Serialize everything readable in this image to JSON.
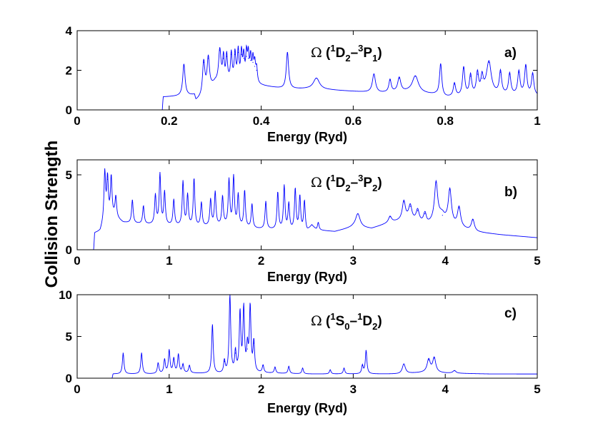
{
  "figure": {
    "ylabel": "Collision Strength",
    "series_color": "#0000ff"
  },
  "chart_data": [
    {
      "type": "line",
      "panel_label": "a)",
      "annotation": {
        "omega": "Ω",
        "open": " (",
        "sup1": "1",
        "t1": "D",
        "sub1": "2",
        "dash": "–",
        "sup2": "3",
        "t2": "P",
        "sub2": "1",
        "close": ")"
      },
      "xlabel": "Energy (Ryd)",
      "xlim": [
        0,
        1
      ],
      "ylim": [
        0,
        4
      ],
      "xticks": [
        0,
        0.2,
        0.4,
        0.6,
        0.8,
        1
      ],
      "xtick_labels": [
        "0",
        "0.2",
        "0.4",
        "0.6",
        "0.8",
        "1"
      ],
      "yticks": [
        0,
        2,
        4
      ],
      "ytick_labels": [
        "0",
        "2",
        "4"
      ],
      "base": [
        [
          0,
          0
        ],
        [
          0.185,
          0
        ],
        [
          0.187,
          0.65
        ],
        [
          0.255,
          0.72
        ],
        [
          0.258,
          0.45
        ],
        [
          0.27,
          0.6
        ],
        [
          0.3,
          1.35
        ],
        [
          0.35,
          1.45
        ],
        [
          0.39,
          1.25
        ],
        [
          0.45,
          1.05
        ],
        [
          0.5,
          1.05
        ],
        [
          0.55,
          1.0
        ],
        [
          0.62,
          0.9
        ],
        [
          0.66,
          0.85
        ],
        [
          0.72,
          0.9
        ],
        [
          0.78,
          0.75
        ],
        [
          0.79,
          0.6
        ],
        [
          0.83,
          0.65
        ],
        [
          0.87,
          0.7
        ],
        [
          0.89,
          0.9
        ],
        [
          0.9,
          0.8
        ],
        [
          0.93,
          0.75
        ],
        [
          1.0,
          0.7
        ]
      ],
      "peaks": [
        [
          0.232,
          2.3,
          0.003
        ],
        [
          0.275,
          2.4,
          0.003
        ],
        [
          0.285,
          2.6,
          0.003
        ],
        [
          0.31,
          3.0,
          0.003
        ],
        [
          0.318,
          2.6,
          0.002
        ],
        [
          0.325,
          2.7,
          0.002
        ],
        [
          0.335,
          2.8,
          0.002
        ],
        [
          0.343,
          2.8,
          0.002
        ],
        [
          0.35,
          2.9,
          0.002
        ],
        [
          0.357,
          2.8,
          0.002
        ],
        [
          0.362,
          2.6,
          0.002
        ],
        [
          0.368,
          2.7,
          0.002
        ],
        [
          0.372,
          2.6,
          0.002
        ],
        [
          0.377,
          2.5,
          0.002
        ],
        [
          0.382,
          2.4,
          0.002
        ],
        [
          0.386,
          2.2,
          0.002
        ],
        [
          0.39,
          2.0,
          0.002
        ],
        [
          0.457,
          2.9,
          0.003
        ],
        [
          0.52,
          1.6,
          0.008
        ],
        [
          0.645,
          1.8,
          0.004
        ],
        [
          0.68,
          1.5,
          0.003
        ],
        [
          0.7,
          1.6,
          0.004
        ],
        [
          0.735,
          1.7,
          0.008
        ],
        [
          0.79,
          2.3,
          0.003
        ],
        [
          0.82,
          1.3,
          0.003
        ],
        [
          0.84,
          2.1,
          0.003
        ],
        [
          0.855,
          1.7,
          0.003
        ],
        [
          0.87,
          1.8,
          0.003
        ],
        [
          0.88,
          1.6,
          0.003
        ],
        [
          0.895,
          2.4,
          0.006
        ],
        [
          0.92,
          1.9,
          0.003
        ],
        [
          0.94,
          1.8,
          0.003
        ],
        [
          0.96,
          1.9,
          0.003
        ],
        [
          0.975,
          2.2,
          0.003
        ],
        [
          0.99,
          1.8,
          0.003
        ]
      ]
    },
    {
      "type": "line",
      "panel_label": "b)",
      "annotation": {
        "omega": "Ω",
        "open": " (",
        "sup1": "1",
        "t1": "D",
        "sub1": "2",
        "dash": "–",
        "sup2": "3",
        "t2": "P",
        "sub2": "2",
        "close": ")"
      },
      "xlabel": "Energy (Ryd)",
      "xlim": [
        0,
        5
      ],
      "ylim": [
        0,
        6
      ],
      "xticks": [
        0,
        1,
        2,
        3,
        4,
        5
      ],
      "xtick_labels": [
        "0",
        "1",
        "2",
        "3",
        "4",
        "5"
      ],
      "yticks": [
        0,
        5
      ],
      "ytick_labels": [
        "0",
        "5"
      ],
      "base": [
        [
          0,
          0
        ],
        [
          0.18,
          0
        ],
        [
          0.19,
          1.1
        ],
        [
          0.25,
          1.2
        ],
        [
          0.3,
          2.0
        ],
        [
          0.4,
          2.2
        ],
        [
          0.5,
          1.8
        ],
        [
          0.7,
          1.7
        ],
        [
          1.0,
          1.6
        ],
        [
          1.3,
          1.5
        ],
        [
          1.6,
          1.6
        ],
        [
          1.9,
          1.4
        ],
        [
          2.2,
          1.3
        ],
        [
          2.5,
          1.2
        ],
        [
          2.55,
          1.6
        ],
        [
          2.6,
          1.3
        ],
        [
          2.8,
          1.2
        ],
        [
          3.0,
          1.5
        ],
        [
          3.2,
          1.4
        ],
        [
          3.4,
          1.8
        ],
        [
          3.6,
          2.0
        ],
        [
          3.8,
          1.6
        ],
        [
          3.95,
          2.2
        ],
        [
          4.1,
          1.6
        ],
        [
          4.3,
          1.2
        ],
        [
          4.6,
          1.0
        ],
        [
          5.0,
          0.8
        ]
      ],
      "peaks": [
        [
          0.3,
          5.1,
          0.01
        ],
        [
          0.33,
          4.7,
          0.01
        ],
        [
          0.37,
          4.8,
          0.01
        ],
        [
          0.42,
          3.5,
          0.01
        ],
        [
          0.6,
          3.3,
          0.01
        ],
        [
          0.72,
          2.9,
          0.01
        ],
        [
          0.85,
          3.6,
          0.01
        ],
        [
          0.9,
          5.0,
          0.01
        ],
        [
          0.95,
          3.8,
          0.01
        ],
        [
          1.05,
          3.3,
          0.01
        ],
        [
          1.15,
          4.5,
          0.01
        ],
        [
          1.2,
          3.6,
          0.01
        ],
        [
          1.27,
          4.7,
          0.01
        ],
        [
          1.35,
          3.1,
          0.01
        ],
        [
          1.45,
          3.3,
          0.01
        ],
        [
          1.5,
          3.8,
          0.01
        ],
        [
          1.58,
          3.5,
          0.01
        ],
        [
          1.65,
          4.6,
          0.01
        ],
        [
          1.7,
          4.8,
          0.01
        ],
        [
          1.75,
          3.6,
          0.01
        ],
        [
          1.82,
          3.9,
          0.01
        ],
        [
          1.9,
          3.0,
          0.01
        ],
        [
          2.05,
          3.2,
          0.01
        ],
        [
          2.18,
          3.8,
          0.01
        ],
        [
          2.25,
          4.2,
          0.01
        ],
        [
          2.3,
          3.0,
          0.01
        ],
        [
          2.37,
          4.0,
          0.01
        ],
        [
          2.42,
          3.5,
          0.01
        ],
        [
          2.47,
          3.2,
          0.01
        ],
        [
          2.62,
          1.8,
          0.01
        ],
        [
          3.05,
          2.4,
          0.03
        ],
        [
          3.4,
          2.2,
          0.02
        ],
        [
          3.55,
          3.2,
          0.02
        ],
        [
          3.62,
          2.9,
          0.02
        ],
        [
          3.7,
          2.6,
          0.02
        ],
        [
          3.78,
          2.4,
          0.02
        ],
        [
          3.9,
          4.5,
          0.02
        ],
        [
          3.97,
          2.3,
          0.02
        ],
        [
          4.05,
          4.0,
          0.02
        ],
        [
          4.15,
          2.8,
          0.02
        ],
        [
          4.3,
          2.0,
          0.02
        ]
      ]
    },
    {
      "type": "line",
      "panel_label": "c)",
      "annotation": {
        "omega": "Ω",
        "open": " (",
        "sup1": "1",
        "t1": "S",
        "sub1": "0",
        "dash": "–",
        "sup2": "1",
        "t2": "D",
        "sub2": "2",
        "close": ")"
      },
      "xlabel": "Energy (Ryd)",
      "xlim": [
        0,
        5
      ],
      "ylim": [
        0,
        10
      ],
      "xticks": [
        0,
        1,
        2,
        3,
        4,
        5
      ],
      "xtick_labels": [
        "0",
        "1",
        "2",
        "3",
        "4",
        "5"
      ],
      "yticks": [
        0,
        5,
        10
      ],
      "ytick_labels": [
        "0",
        "5",
        "10"
      ],
      "base": [
        [
          0,
          0
        ],
        [
          0.38,
          0
        ],
        [
          0.39,
          0.5
        ],
        [
          0.8,
          0.5
        ],
        [
          1.2,
          0.6
        ],
        [
          1.6,
          0.5
        ],
        [
          2.0,
          0.6
        ],
        [
          2.5,
          0.5
        ],
        [
          3.0,
          0.5
        ],
        [
          3.5,
          0.5
        ],
        [
          3.8,
          0.7
        ],
        [
          4.0,
          0.6
        ],
        [
          4.5,
          0.5
        ],
        [
          5.0,
          0.5
        ]
      ],
      "peaks": [
        [
          0.5,
          3.0,
          0.01
        ],
        [
          0.7,
          3.0,
          0.01
        ],
        [
          0.88,
          1.8,
          0.01
        ],
        [
          0.95,
          2.2,
          0.01
        ],
        [
          1.0,
          3.3,
          0.01
        ],
        [
          1.05,
          2.3,
          0.01
        ],
        [
          1.1,
          2.8,
          0.01
        ],
        [
          1.15,
          1.6,
          0.01
        ],
        [
          1.22,
          1.5,
          0.01
        ],
        [
          1.47,
          6.4,
          0.01
        ],
        [
          1.6,
          2.0,
          0.01
        ],
        [
          1.66,
          10.0,
          0.01
        ],
        [
          1.72,
          3.0,
          0.01
        ],
        [
          1.77,
          7.7,
          0.01
        ],
        [
          1.81,
          8.2,
          0.01
        ],
        [
          1.85,
          3.5,
          0.01
        ],
        [
          1.88,
          8.4,
          0.01
        ],
        [
          1.92,
          4.2,
          0.01
        ],
        [
          2.02,
          1.5,
          0.01
        ],
        [
          2.15,
          1.3,
          0.01
        ],
        [
          2.3,
          1.4,
          0.01
        ],
        [
          2.45,
          1.2,
          0.01
        ],
        [
          2.75,
          1.0,
          0.01
        ],
        [
          2.9,
          1.2,
          0.01
        ],
        [
          3.1,
          1.5,
          0.01
        ],
        [
          3.14,
          3.3,
          0.01
        ],
        [
          3.55,
          1.7,
          0.02
        ],
        [
          3.82,
          2.2,
          0.02
        ],
        [
          3.88,
          2.4,
          0.02
        ],
        [
          4.1,
          0.9,
          0.02
        ]
      ]
    }
  ]
}
